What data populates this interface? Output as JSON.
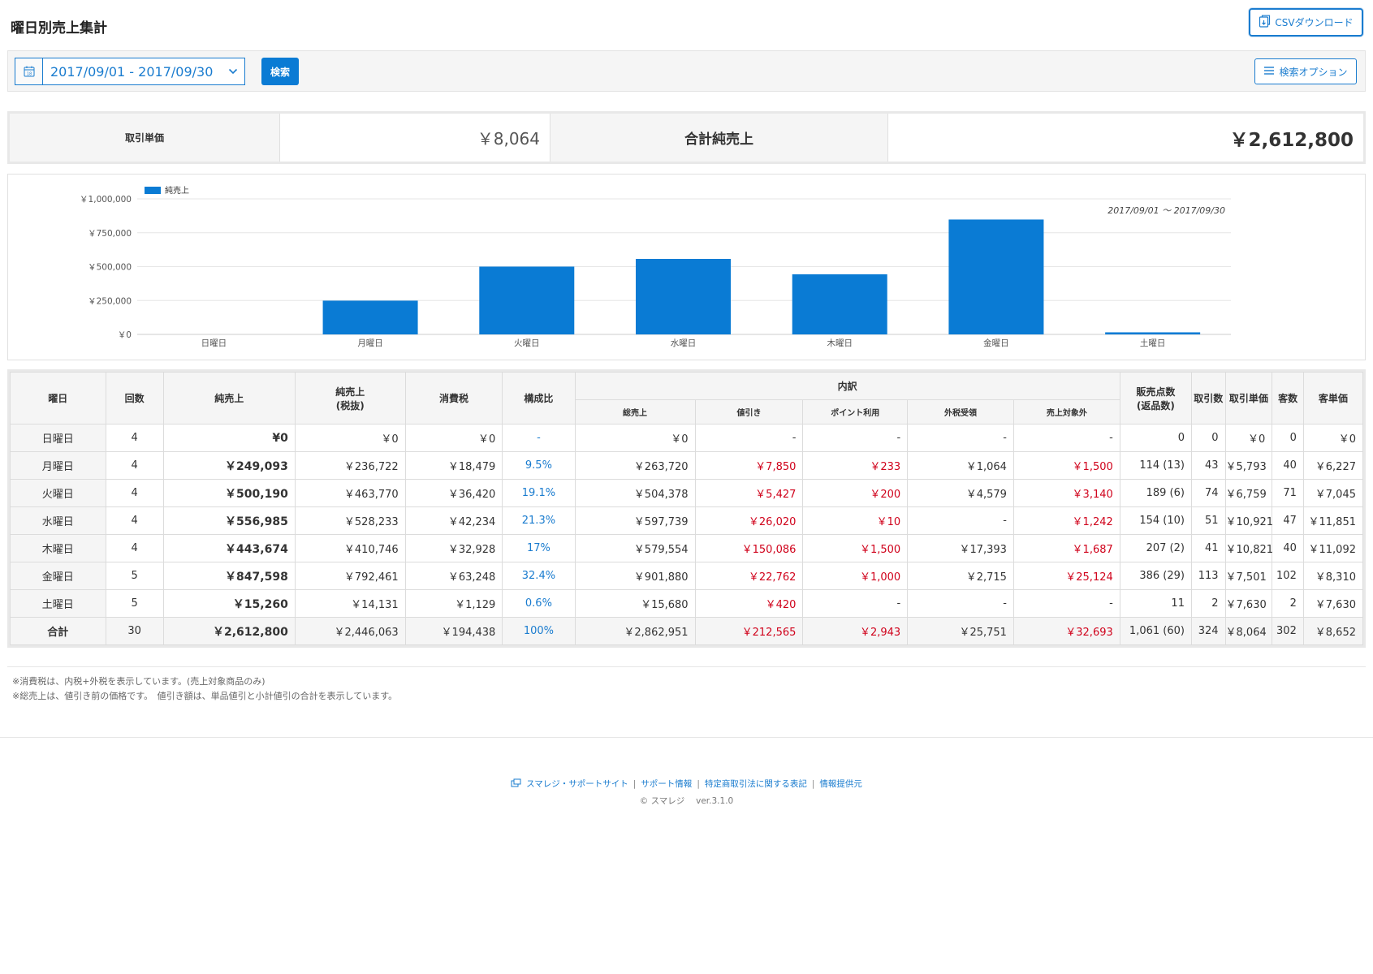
{
  "page": {
    "title": "曜日別売上集計"
  },
  "toolbar": {
    "csv_label": "CSVダウンロード",
    "date_range": "2017/09/01 - 2017/09/30",
    "search_label": "検索",
    "options_label": "検索オプション"
  },
  "summary": {
    "unit_price_label": "取引単価",
    "unit_price_value": "￥8,064",
    "total_label": "合計純売上",
    "total_value": "￥2,612,800"
  },
  "chart_data": {
    "type": "bar",
    "legend": "純売上",
    "period_note": "2017/09/01 ～ 2017/09/30",
    "categories": [
      "日曜日",
      "月曜日",
      "火曜日",
      "水曜日",
      "木曜日",
      "金曜日",
      "土曜日"
    ],
    "values": [
      0,
      249093,
      500190,
      556985,
      443674,
      847598,
      15260
    ],
    "ylim": [
      0,
      1000000
    ],
    "yticks": [
      0,
      250000,
      500000,
      750000,
      1000000
    ],
    "ytick_labels": [
      "￥0",
      "￥250,000",
      "￥500,000",
      "￥750,000",
      "￥1,000,000"
    ],
    "bar_color": "#0a7bd4",
    "grid": true,
    "legend_position": "top-left"
  },
  "table": {
    "headers": {
      "day": "曜日",
      "count": "回数",
      "net": "純売上",
      "net_ex_tax_1": "純売上",
      "net_ex_tax_2": "(税抜)",
      "tax": "消費税",
      "ratio": "構成比",
      "breakdown": "内訳",
      "gross": "総売上",
      "discount": "値引き",
      "points": "ポイント利用",
      "outer_tax": "外税受領",
      "excluded": "売上対象外",
      "items_1": "販売点数",
      "items_2": "(返品数)",
      "tx_count": "取引数",
      "tx_price": "取引単価",
      "customers": "客数",
      "cust_price": "客単価"
    },
    "rows": [
      {
        "day": "日曜日",
        "count": "4",
        "net": "¥0",
        "net_ex": "￥0",
        "tax": "￥0",
        "ratio": "-",
        "gross": "￥0",
        "discount": "-",
        "points": "-",
        "outer": "-",
        "excluded": "-",
        "items": "0",
        "tx": "0",
        "tx_price": "￥0",
        "cust": "0",
        "cust_price": "￥0",
        "red_discount": false,
        "red_points": false,
        "red_excluded": false
      },
      {
        "day": "月曜日",
        "count": "4",
        "net": "￥249,093",
        "net_ex": "￥236,722",
        "tax": "￥18,479",
        "ratio": "9.5%",
        "gross": "￥263,720",
        "discount": "￥7,850",
        "points": "￥233",
        "outer": "￥1,064",
        "excluded": "￥1,500",
        "items": "114 (13)",
        "tx": "43",
        "tx_price": "￥5,793",
        "cust": "40",
        "cust_price": "￥6,227",
        "red_discount": true,
        "red_points": true,
        "red_excluded": true
      },
      {
        "day": "火曜日",
        "count": "4",
        "net": "￥500,190",
        "net_ex": "￥463,770",
        "tax": "￥36,420",
        "ratio": "19.1%",
        "gross": "￥504,378",
        "discount": "￥5,427",
        "points": "￥200",
        "outer": "￥4,579",
        "excluded": "￥3,140",
        "items": "189 (6)",
        "tx": "74",
        "tx_price": "￥6,759",
        "cust": "71",
        "cust_price": "￥7,045",
        "red_discount": true,
        "red_points": true,
        "red_excluded": true
      },
      {
        "day": "水曜日",
        "count": "4",
        "net": "￥556,985",
        "net_ex": "￥528,233",
        "tax": "￥42,234",
        "ratio": "21.3%",
        "gross": "￥597,739",
        "discount": "￥26,020",
        "points": "￥10",
        "outer": "-",
        "excluded": "￥1,242",
        "items": "154 (10)",
        "tx": "51",
        "tx_price": "￥10,921",
        "cust": "47",
        "cust_price": "￥11,851",
        "red_discount": true,
        "red_points": true,
        "red_excluded": true
      },
      {
        "day": "木曜日",
        "count": "4",
        "net": "￥443,674",
        "net_ex": "￥410,746",
        "tax": "￥32,928",
        "ratio": "17%",
        "gross": "￥579,554",
        "discount": "￥150,086",
        "points": "￥1,500",
        "outer": "￥17,393",
        "excluded": "￥1,687",
        "items": "207 (2)",
        "tx": "41",
        "tx_price": "￥10,821",
        "cust": "40",
        "cust_price": "￥11,092",
        "red_discount": true,
        "red_points": true,
        "red_excluded": true
      },
      {
        "day": "金曜日",
        "count": "5",
        "net": "￥847,598",
        "net_ex": "￥792,461",
        "tax": "￥63,248",
        "ratio": "32.4%",
        "gross": "￥901,880",
        "discount": "￥22,762",
        "points": "￥1,000",
        "outer": "￥2,715",
        "excluded": "￥25,124",
        "items": "386 (29)",
        "tx": "113",
        "tx_price": "￥7,501",
        "cust": "102",
        "cust_price": "￥8,310",
        "red_discount": true,
        "red_points": true,
        "red_excluded": true
      },
      {
        "day": "土曜日",
        "count": "5",
        "net": "￥15,260",
        "net_ex": "￥14,131",
        "tax": "￥1,129",
        "ratio": "0.6%",
        "gross": "￥15,680",
        "discount": "￥420",
        "points": "-",
        "outer": "-",
        "excluded": "-",
        "items": "11",
        "tx": "2",
        "tx_price": "￥7,630",
        "cust": "2",
        "cust_price": "￥7,630",
        "red_discount": true,
        "red_points": false,
        "red_excluded": false
      }
    ],
    "total": {
      "day": "合計",
      "count": "30",
      "net": "￥2,612,800",
      "net_ex": "￥2,446,063",
      "tax": "￥194,438",
      "ratio": "100%",
      "gross": "￥2,862,951",
      "discount": "￥212,565",
      "points": "￥2,943",
      "outer": "￥25,751",
      "excluded": "￥32,693",
      "items": "1,061 (60)",
      "tx": "324",
      "tx_price": "￥8,064",
      "cust": "302",
      "cust_price": "￥8,652"
    }
  },
  "notes": [
    "※消費税は、内税+外税を表示しています。(売上対象商品のみ)",
    "※総売上は、値引き前の価格です。　値引き額は、単品値引と小計値引の合計を表示しています。"
  ],
  "footer": {
    "links": [
      "スマレジ・サポートサイト",
      "サポート情報",
      "特定商取引法に関する表記",
      "情報提供元"
    ],
    "copyright": "© スマレジ　 ver.3.1.0"
  }
}
